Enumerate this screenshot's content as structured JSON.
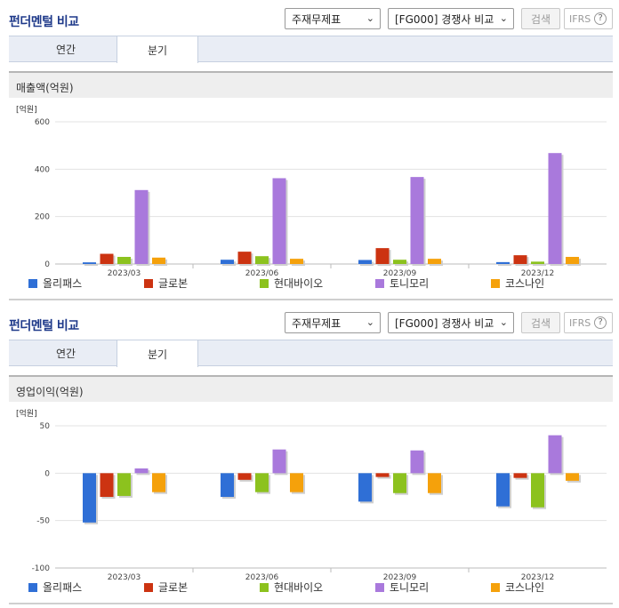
{
  "sections": [
    {
      "title": "펀더멘털 비교",
      "select_statement": "주재무제표",
      "select_compare": "[FG000] 경쟁사 비교",
      "search_label": "검색",
      "ifrs_label": "IFRS",
      "help_glyph": "?",
      "tabs": [
        {
          "label": "연간",
          "active": false
        },
        {
          "label": "분기",
          "active": true
        }
      ],
      "chart_header": "매출액(억원)",
      "chart_data": {
        "type": "bar",
        "unit_label": "[억원]",
        "categories": [
          "2023/03",
          "2023/06",
          "2023/09",
          "2023/12"
        ],
        "series": [
          {
            "name": "올리패스",
            "color": "#2f6fd6",
            "values": [
              7,
              18,
              17,
              8
            ]
          },
          {
            "name": "글로본",
            "color": "#cc3311",
            "values": [
              43,
              52,
              67,
              37
            ]
          },
          {
            "name": "현대바이오",
            "color": "#8cc21e",
            "values": [
              30,
              33,
              18,
              10
            ]
          },
          {
            "name": "토니모리",
            "color": "#a979dc",
            "values": [
              312,
              362,
              367,
              468
            ]
          },
          {
            "name": "코스나인",
            "color": "#f5a10b",
            "values": [
              27,
              22,
              22,
              30
            ]
          }
        ],
        "ylim": [
          0,
          600
        ],
        "yticks": [
          "0",
          "200",
          "400",
          "600"
        ],
        "ytick_values": [
          0,
          200,
          400,
          600
        ],
        "grid": true,
        "legend": "bottom"
      }
    },
    {
      "title": "펀더멘털 비교",
      "select_statement": "주재무제표",
      "select_compare": "[FG000] 경쟁사 비교",
      "search_label": "검색",
      "ifrs_label": "IFRS",
      "help_glyph": "?",
      "tabs": [
        {
          "label": "연간",
          "active": false
        },
        {
          "label": "분기",
          "active": true
        }
      ],
      "chart_header": "영업이익(억원)",
      "chart_data": {
        "type": "bar",
        "unit_label": "[억원]",
        "categories": [
          "2023/03",
          "2023/06",
          "2023/09",
          "2023/12"
        ],
        "series": [
          {
            "name": "올리패스",
            "color": "#2f6fd6",
            "values": [
              -52,
              -25,
              -30,
              -35
            ]
          },
          {
            "name": "글로본",
            "color": "#cc3311",
            "values": [
              -25,
              -7,
              -4,
              -5
            ]
          },
          {
            "name": "현대바이오",
            "color": "#8cc21e",
            "values": [
              -24,
              -20,
              -21,
              -36
            ]
          },
          {
            "name": "토니모리",
            "color": "#a979dc",
            "values": [
              5,
              25,
              24,
              40
            ]
          },
          {
            "name": "코스나인",
            "color": "#f5a10b",
            "values": [
              -20,
              -20,
              -21,
              -8
            ]
          }
        ],
        "ylim": [
          -100,
          50
        ],
        "yticks": [
          "-100",
          "-50",
          "0",
          "50"
        ],
        "ytick_values": [
          -100,
          -50,
          0,
          50
        ],
        "grid": true,
        "legend": "bottom"
      }
    }
  ]
}
